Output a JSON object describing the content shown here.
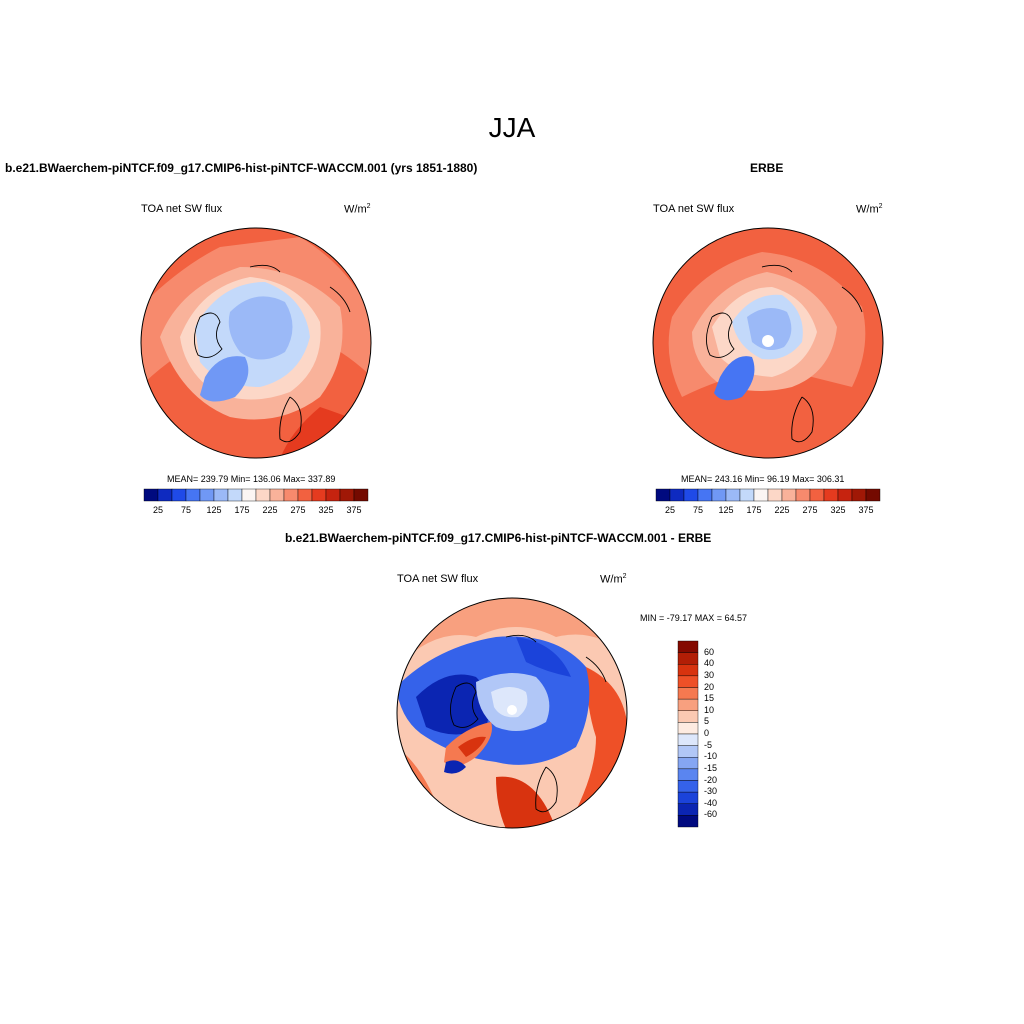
{
  "figure": {
    "title": "JJA",
    "colors": {
      "abs_scale": [
        "#000a7f",
        "#0e2ac0",
        "#1f4ae8",
        "#4675f3",
        "#7098f5",
        "#9bb9f7",
        "#c3d9fa",
        "#fbf5f3",
        "#fcd7c7",
        "#f9b29a",
        "#f78a6d",
        "#f26140",
        "#e53b1f",
        "#c6230f",
        "#a01806",
        "#740a00"
      ],
      "diff_scale": [
        "#000a7f",
        "#0b25b2",
        "#1b43da",
        "#3562ea",
        "#5a85f0",
        "#85a6f3",
        "#b1c7f7",
        "#dde7fb",
        "#fdebe1",
        "#fbc9b2",
        "#f8a07f",
        "#f57950",
        "#ee5027",
        "#d8330f",
        "#b21e06",
        "#840a00"
      ]
    }
  },
  "panels": {
    "model": {
      "title": "b.e21.BWaerchem-piNTCF.f09_g17.CMIP6-hist-piNTCF-WACCM.001 (yrs 1851-1880)",
      "variable": "TOA net SW flux",
      "units": "W/m",
      "units_exp": "2",
      "stats": "MEAN= 239.79  Min= 136.06  Max= 337.89",
      "colorbar_labels": [
        "25",
        "75",
        "125",
        "175",
        "225",
        "275",
        "325",
        "375"
      ]
    },
    "obs": {
      "title": "ERBE",
      "variable": "TOA net SW flux",
      "units": "W/m",
      "units_exp": "2",
      "stats": "MEAN= 243.16  Min=  96.19  Max= 306.31",
      "colorbar_labels": [
        "25",
        "75",
        "125",
        "175",
        "225",
        "275",
        "325",
        "375"
      ]
    },
    "diff": {
      "title": "b.e21.BWaerchem-piNTCF.f09_g17.CMIP6-hist-piNTCF-WACCM.001 - ERBE",
      "variable": "TOA net SW flux",
      "units": "W/m",
      "units_exp": "2",
      "stats": "MIN = -79.17 MAX =  64.57",
      "colorbar_labels": [
        "60",
        "40",
        "30",
        "20",
        "15",
        "10",
        "5",
        "0",
        "-5",
        "-10",
        "-15",
        "-20",
        "-30",
        "-40",
        "-60"
      ]
    }
  }
}
